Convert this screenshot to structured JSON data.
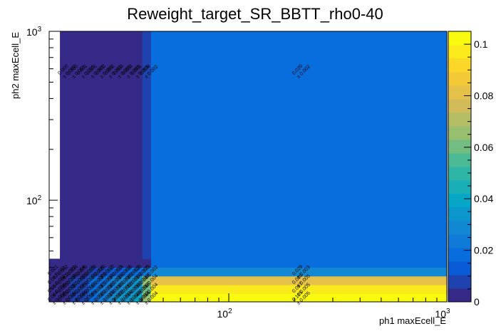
{
  "chart_data": {
    "type": "heatmap",
    "title": "Reweight_target_SR_BBTT_rho0-40",
    "xlabel": "ph1 maxEcell_E",
    "ylabel": "ph2 maxEcell_E",
    "x_scale": "log",
    "y_scale": "log",
    "x_range": [
      15,
      1000
    ],
    "y_range": [
      25,
      1000
    ],
    "x_ticks": [
      {
        "value": 100,
        "base": "10",
        "exp": "2"
      },
      {
        "value": 1000,
        "base": "10",
        "exp": "3"
      }
    ],
    "y_ticks": [
      {
        "value": 100,
        "base": "10",
        "exp": "2"
      },
      {
        "value": 1000,
        "base": "10",
        "exp": "3"
      }
    ],
    "z_range": [
      0,
      0.105
    ],
    "z_ticks": [
      "0",
      "0.02",
      "0.04",
      "0.06",
      "0.08",
      "0.1"
    ],
    "x_edges": [
      15,
      16.8,
      18.6,
      20.5,
      22.7,
      25,
      27.5,
      30.2,
      33.2,
      36.5,
      40.1,
      44,
      1000
    ],
    "y_edges": [
      25,
      28,
      31.5,
      35.5,
      40,
      45,
      1000
    ],
    "values": [
      [
        0.004,
        0.005,
        0.006,
        0.009,
        0.02,
        0.025,
        0.028,
        0.032,
        0.034,
        0.04,
        0.066,
        0.105
      ],
      [
        0.004,
        0.005,
        0.007,
        0.009,
        0.018,
        0.022,
        0.026,
        0.03,
        0.032,
        0.036,
        0.058,
        0.097
      ],
      [
        0.002,
        0.003,
        0.006,
        0.01,
        0.016,
        0.02,
        0.024,
        0.028,
        0.03,
        0.034,
        0.068,
        0.08
      ],
      [
        0.001,
        0.002,
        0.004,
        0.005,
        0.008,
        0.01,
        0.012,
        0.014,
        0.016,
        0.02,
        0.023,
        0.029
      ],
      [
        0.001,
        0.001,
        0.001,
        0.001,
        0.001,
        0.001,
        0.001,
        0.001,
        0.001,
        0.001,
        0.002,
        0.02
      ],
      [
        null,
        0.0,
        0.0,
        0.001,
        0.001,
        0.002,
        0.002,
        0.003,
        0.003,
        0.001,
        0.009,
        0.02
      ]
    ],
    "labeled_cells": [
      {
        "row": 0,
        "col": 0,
        "value": "0.004",
        "error": "± 0.004"
      },
      {
        "row": 0,
        "col": 1,
        "value": "0.005",
        "error": "± 0.005"
      },
      {
        "row": 0,
        "col": 2,
        "value": "0.006",
        "error": "± 0.006"
      },
      {
        "row": 0,
        "col": 3,
        "value": "0.009",
        "error": "± 0.009"
      },
      {
        "row": 0,
        "col": 4,
        "value": "0.020",
        "error": "± 0.002"
      },
      {
        "row": 0,
        "col": 5,
        "value": "0.025",
        "error": "± 0.003"
      },
      {
        "row": 0,
        "col": 6,
        "value": "0.028",
        "error": "± 0.003"
      },
      {
        "row": 0,
        "col": 7,
        "value": "0.032",
        "error": "± 0.003"
      },
      {
        "row": 0,
        "col": 8,
        "value": "0.034",
        "error": "± 0.003"
      },
      {
        "row": 0,
        "col": 9,
        "value": "0.040",
        "error": "± 0.003"
      },
      {
        "row": 0,
        "col": 10,
        "value": "0.066",
        "error": "± 0.004"
      },
      {
        "row": 0,
        "col": 11,
        "value": "0.105",
        "error": "± 0.005"
      },
      {
        "row": 1,
        "col": 0,
        "value": "0.004",
        "error": "± 0.004"
      },
      {
        "row": 1,
        "col": 1,
        "value": "0.005",
        "error": "± 0.005"
      },
      {
        "row": 1,
        "col": 2,
        "value": "0.007",
        "error": "± 0.007"
      },
      {
        "row": 1,
        "col": 3,
        "value": "0.009",
        "error": "± 0.009"
      },
      {
        "row": 1,
        "col": 4,
        "value": "0.018",
        "error": "± 0.002"
      },
      {
        "row": 1,
        "col": 5,
        "value": "0.022",
        "error": "± 0.002"
      },
      {
        "row": 1,
        "col": 6,
        "value": "0.026",
        "error": "± 0.003"
      },
      {
        "row": 1,
        "col": 7,
        "value": "0.030",
        "error": "± 0.003"
      },
      {
        "row": 1,
        "col": 8,
        "value": "0.032",
        "error": "± 0.003"
      },
      {
        "row": 1,
        "col": 9,
        "value": "0.036",
        "error": "± 0.003"
      },
      {
        "row": 1,
        "col": 10,
        "value": "0.058",
        "error": "± 0.004"
      },
      {
        "row": 1,
        "col": 11,
        "value": "0.097",
        "error": "± 0.005"
      },
      {
        "row": 2,
        "col": 0,
        "value": "0.002",
        "error": "± 0.002"
      },
      {
        "row": 2,
        "col": 1,
        "value": "0.003",
        "error": "± 0.003"
      },
      {
        "row": 2,
        "col": 2,
        "value": "0.006",
        "error": "± 0.006"
      },
      {
        "row": 2,
        "col": 3,
        "value": "0.010",
        "error": "± 0.002"
      },
      {
        "row": 2,
        "col": 4,
        "value": "0.016",
        "error": "± 0.002"
      },
      {
        "row": 2,
        "col": 5,
        "value": "0.020",
        "error": "± 0.002"
      },
      {
        "row": 2,
        "col": 6,
        "value": "0.024",
        "error": "± 0.003"
      },
      {
        "row": 2,
        "col": 7,
        "value": "0.028",
        "error": "± 0.003"
      },
      {
        "row": 2,
        "col": 8,
        "value": "0.030",
        "error": "± 0.003"
      },
      {
        "row": 2,
        "col": 9,
        "value": "0.034",
        "error": "± 0.003"
      },
      {
        "row": 2,
        "col": 10,
        "value": "0.068",
        "error": "± 0.004"
      },
      {
        "row": 2,
        "col": 11,
        "value": "0.080",
        "error": "± 0.005"
      },
      {
        "row": 3,
        "col": 0,
        "value": "0.001",
        "error": "± 0.001"
      },
      {
        "row": 3,
        "col": 1,
        "value": "0.002",
        "error": "± 0.002"
      },
      {
        "row": 3,
        "col": 2,
        "value": "0.004",
        "error": "± 0.004"
      },
      {
        "row": 3,
        "col": 3,
        "value": "0.005",
        "error": "± 0.005"
      },
      {
        "row": 3,
        "col": 4,
        "value": "0.008",
        "error": "± 0.008"
      },
      {
        "row": 3,
        "col": 5,
        "value": "0.010",
        "error": "± 0.002"
      },
      {
        "row": 3,
        "col": 6,
        "value": "0.012",
        "error": "± 0.002"
      },
      {
        "row": 3,
        "col": 7,
        "value": "0.014",
        "error": "± 0.002"
      },
      {
        "row": 3,
        "col": 8,
        "value": "0.016",
        "error": "± 0.002"
      },
      {
        "row": 3,
        "col": 9,
        "value": "0.020",
        "error": "± 0.002"
      },
      {
        "row": 3,
        "col": 10,
        "value": "0.023",
        "error": "± 0.002"
      },
      {
        "row": 3,
        "col": 11,
        "value": "0.029",
        "error": "± 0.003"
      },
      {
        "row": 5,
        "col": 1,
        "value": "0.000",
        "error": "± 0.000"
      },
      {
        "row": 5,
        "col": 2,
        "value": "0.000",
        "error": "± 0.001"
      },
      {
        "row": 5,
        "col": 3,
        "value": "0.001",
        "error": "± 0.001"
      },
      {
        "row": 5,
        "col": 4,
        "value": "0.001",
        "error": "± 0.001"
      },
      {
        "row": 5,
        "col": 5,
        "value": "0.002",
        "error": "± 0.001"
      },
      {
        "row": 5,
        "col": 6,
        "value": "0.002",
        "error": "± 0.001"
      },
      {
        "row": 5,
        "col": 7,
        "value": "0.003",
        "error": "± 0.001"
      },
      {
        "row": 5,
        "col": 8,
        "value": "0.003",
        "error": "± 0.001"
      },
      {
        "row": 5,
        "col": 9,
        "value": "0.001",
        "error": "± 0.001"
      },
      {
        "row": 5,
        "col": 10,
        "value": "0.009",
        "error": "± 0.002"
      },
      {
        "row": 5,
        "col": 11,
        "value": "0.020",
        "error": "± 0.002"
      }
    ],
    "grid": false,
    "legend": "colorbar-right"
  }
}
